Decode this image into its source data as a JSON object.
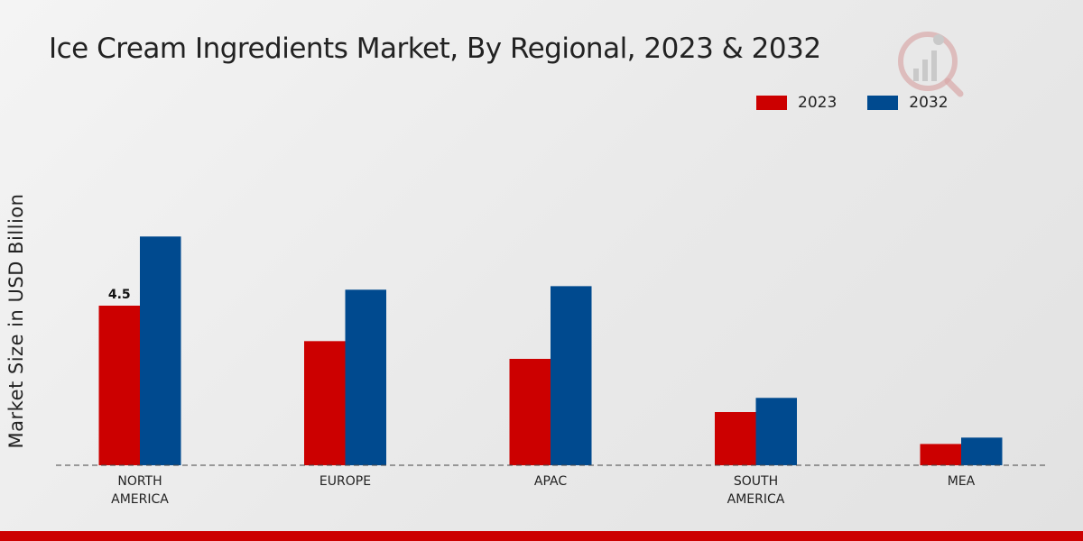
{
  "chart_data": {
    "type": "bar",
    "title": "Ice Cream Ingredients Market, By Regional, 2023 & 2032",
    "xlabel": "",
    "ylabel": "Market Size in USD Billion",
    "categories": [
      [
        "NORTH",
        "AMERICA"
      ],
      [
        "EUROPE"
      ],
      [
        "APAC"
      ],
      [
        "SOUTH",
        "AMERICA"
      ],
      [
        "MEA"
      ]
    ],
    "series": [
      {
        "name": "2023",
        "color": "#cc0000",
        "values": [
          4.5,
          3.5,
          3.0,
          1.5,
          0.6
        ]
      },
      {
        "name": "2032",
        "color": "#004a8f",
        "values": [
          6.45,
          4.95,
          5.05,
          1.9,
          0.78
        ]
      }
    ],
    "data_labels": [
      {
        "series": 0,
        "index": 0,
        "text": "4.5"
      }
    ],
    "ylim": [
      0,
      9
    ],
    "grid": false,
    "legend_position": "top-right"
  }
}
